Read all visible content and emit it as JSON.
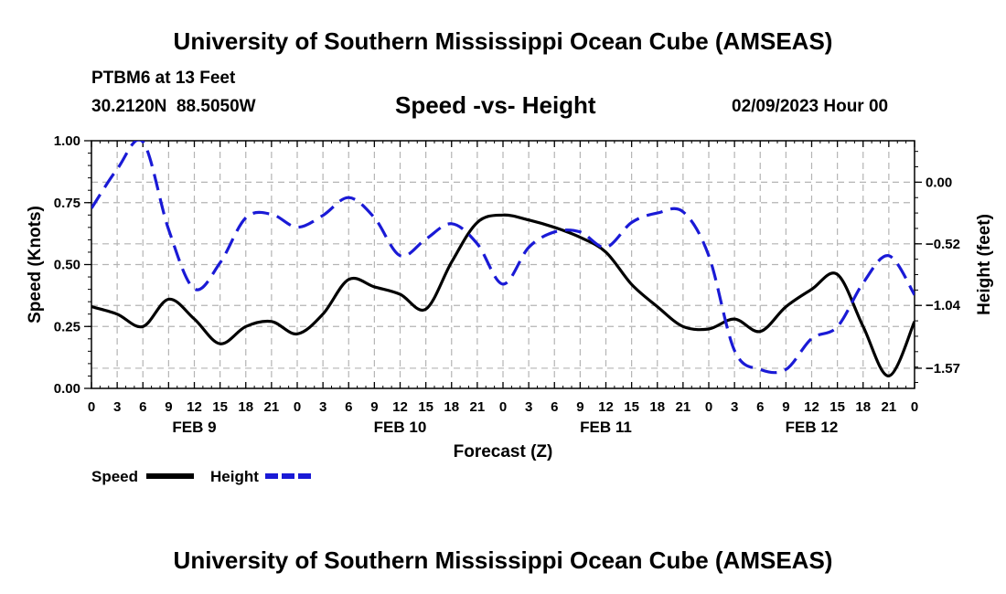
{
  "header": {
    "title": "University of Southern Mississippi Ocean Cube (AMSEAS)",
    "station": "PTBM6 at 13 Feet",
    "coords": "30.2120N  88.5050W",
    "subtitle": "Speed -vs- Height",
    "date": "02/09/2023 Hour 00"
  },
  "footer": {
    "title": "University of Southern Mississippi Ocean Cube (AMSEAS)"
  },
  "colors": {
    "speed": "#000000",
    "height": "#1a1ad6",
    "grid": "#b4b4b4"
  },
  "chart_data": {
    "type": "line",
    "title": "Speed -vs- Height",
    "xlabel": "Forecast (Z)",
    "ylabel": "Speed (Knots)",
    "ylabel_right": "Height (feet)",
    "x_range": [
      0,
      96
    ],
    "xticks": [
      0,
      3,
      6,
      9,
      12,
      15,
      18,
      21,
      24,
      27,
      30,
      33,
      36,
      39,
      42,
      45,
      48,
      51,
      54,
      57,
      60,
      63,
      66,
      69,
      72,
      75,
      78,
      81,
      84,
      87,
      90,
      93,
      96
    ],
    "xtick_labels": [
      "0",
      "3",
      "6",
      "9",
      "12",
      "15",
      "18",
      "21",
      "0",
      "3",
      "6",
      "9",
      "12",
      "15",
      "18",
      "21",
      "0",
      "3",
      "6",
      "9",
      "12",
      "15",
      "18",
      "21",
      "0",
      "3",
      "6",
      "9",
      "12",
      "15",
      "18",
      "21",
      "0"
    ],
    "day_labels": [
      {
        "label": "FEB 9",
        "hour": 12
      },
      {
        "label": "FEB 10",
        "hour": 36
      },
      {
        "label": "FEB 11",
        "hour": 60
      },
      {
        "label": "FEB 12",
        "hour": 84
      }
    ],
    "ylim": [
      0,
      1
    ],
    "yticks": [
      0,
      0.25,
      0.5,
      0.75,
      1.0
    ],
    "ytick_labels": [
      "0.00",
      "0.25",
      "0.50",
      "0.75",
      "1.00"
    ],
    "ylim_right": [
      -1.74,
      0.35
    ],
    "yticks_right": [
      0.0,
      -0.52,
      -1.04,
      -1.57
    ],
    "ytick_labels_right": [
      "0.00",
      "−0.52",
      "−1.04",
      "−1.57"
    ],
    "series": [
      {
        "name": "Speed",
        "axis": "left",
        "style": "solid",
        "x": [
          0,
          3,
          6,
          9,
          12,
          15,
          18,
          21,
          24,
          27,
          30,
          33,
          36,
          39,
          42,
          45,
          48,
          51,
          54,
          57,
          60,
          63,
          66,
          69,
          72,
          75,
          78,
          81,
          84,
          87,
          90,
          93,
          96
        ],
        "values": [
          0.33,
          0.3,
          0.25,
          0.36,
          0.28,
          0.18,
          0.25,
          0.27,
          0.22,
          0.3,
          0.44,
          0.41,
          0.38,
          0.32,
          0.51,
          0.67,
          0.7,
          0.68,
          0.65,
          0.61,
          0.55,
          0.42,
          0.33,
          0.25,
          0.24,
          0.28,
          0.23,
          0.33,
          0.4,
          0.46,
          0.25,
          0.05,
          0.27
        ]
      },
      {
        "name": "Height",
        "axis": "right",
        "style": "dashed",
        "x": [
          0,
          3,
          6,
          9,
          12,
          15,
          18,
          21,
          24,
          27,
          30,
          33,
          36,
          39,
          42,
          45,
          48,
          51,
          54,
          57,
          60,
          63,
          66,
          69,
          72,
          75,
          78,
          81,
          84,
          87,
          90,
          93,
          96
        ],
        "values": [
          -0.22,
          0.11,
          0.34,
          -0.4,
          -0.9,
          -0.68,
          -0.3,
          -0.27,
          -0.38,
          -0.28,
          -0.13,
          -0.3,
          -0.62,
          -0.48,
          -0.35,
          -0.52,
          -0.86,
          -0.55,
          -0.42,
          -0.42,
          -0.55,
          -0.34,
          -0.26,
          -0.25,
          -0.62,
          -1.42,
          -1.58,
          -1.58,
          -1.32,
          -1.22,
          -0.85,
          -0.62,
          -0.95
        ]
      }
    ],
    "legend": [
      {
        "label": "Speed",
        "series": "Speed"
      },
      {
        "label": "Height",
        "series": "Height"
      }
    ],
    "legend_position": "bottom-left",
    "grid": true
  }
}
